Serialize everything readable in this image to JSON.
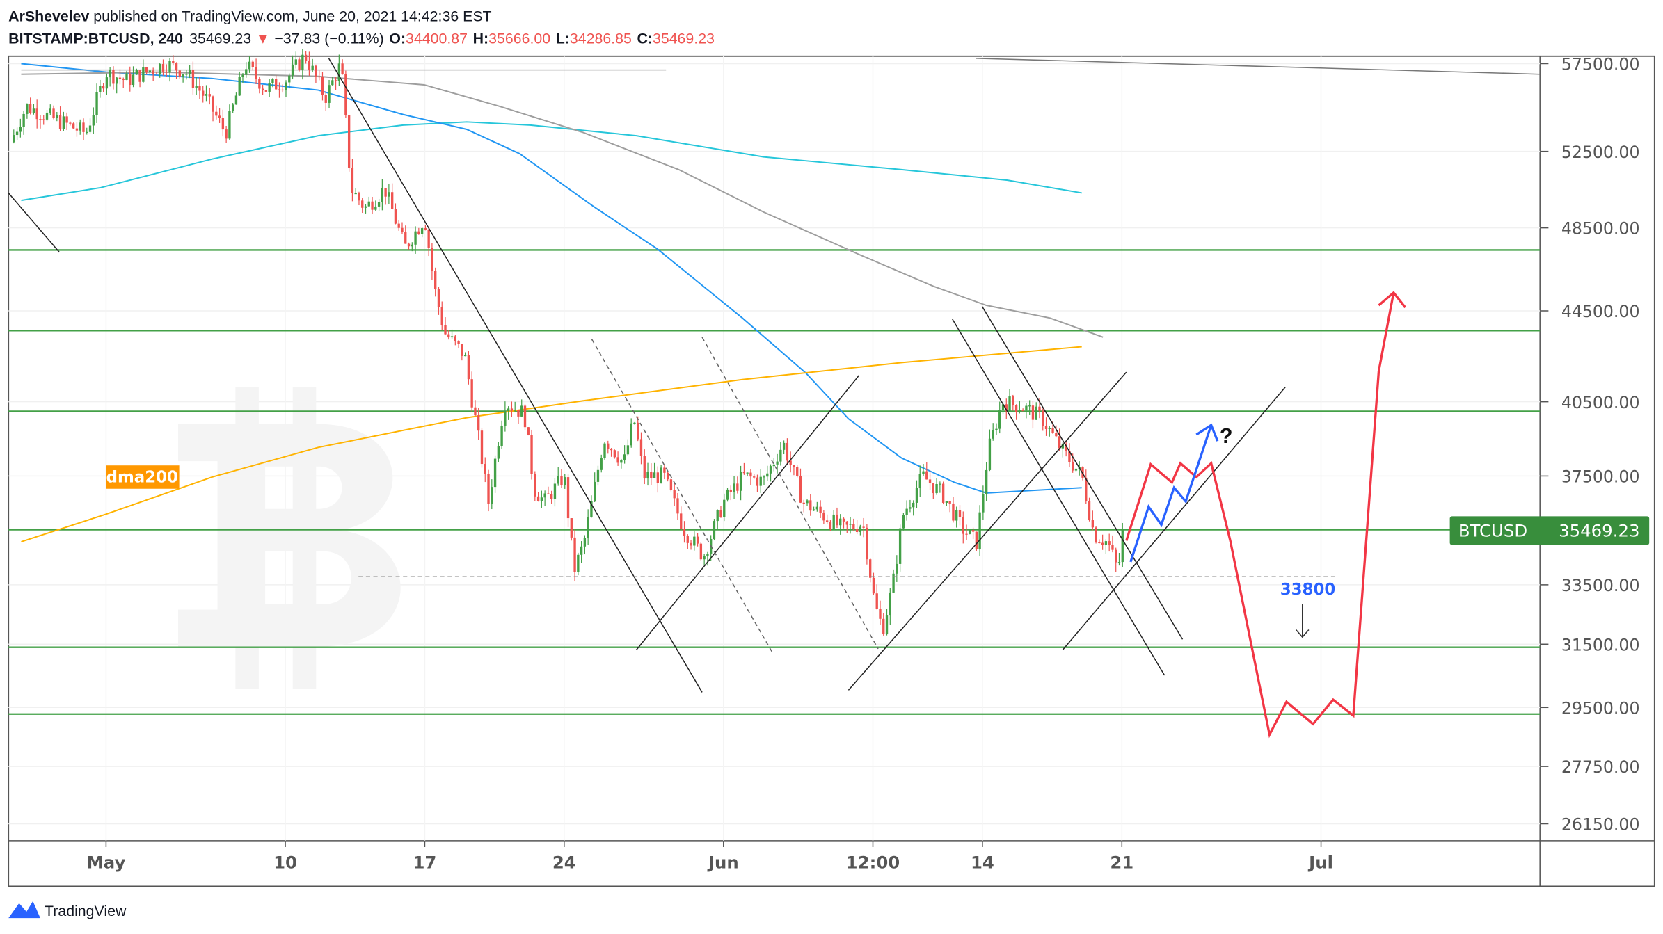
{
  "header": {
    "author": "ArShevelev",
    "published": " published on TradingView.com, June 20, 2021 14:42:36 EST",
    "symbol": "BITSTAMP:BTCUSD, 240",
    "last": "35469.23",
    "change": "−37.83 (−0.11%)",
    "o_label": "O:",
    "o": "34400.87",
    "h_label": "H:",
    "h": "35666.00",
    "l_label": "L:",
    "l": "34286.85",
    "c_label": "C:",
    "c": "35469.23"
  },
  "colors": {
    "up": "#43a047",
    "down": "#ef5350",
    "level": "#43a047",
    "accent_red": "#f23645",
    "accent_blue": "#2962ff",
    "ma_cyan": "#26c6da",
    "ma_blue": "#2196f3",
    "ma_gray": "#9e9e9e",
    "ma_orange": "#ffb300"
  },
  "chart_data": {
    "type": "candlestick",
    "title": "BITSTAMP:BTCUSD, 240",
    "scale": "log",
    "ylim": [
      26150,
      57500
    ],
    "y_ticks": [
      "57500.00",
      "52500.00",
      "48500.00",
      "44500.00",
      "40500.00",
      "37500.00",
      "33500.00",
      "31500.00",
      "29500.00",
      "27750.00",
      "26150.00"
    ],
    "y_tick_values": [
      57500,
      52500,
      48500,
      44500,
      40500,
      37500,
      33500,
      31500,
      29500,
      27750,
      26150
    ],
    "x_ticks": [
      "May",
      "10",
      "17",
      "24",
      "Jun",
      "12:00",
      "14",
      "21",
      "Jul"
    ],
    "x_tick_days": [
      0,
      9,
      16,
      23,
      31,
      38.5,
      44,
      51,
      61
    ],
    "x_origin": "2021-05-01",
    "close_waypoints_days_price": [
      [
        -4.8,
        53000
      ],
      [
        -4,
        55000
      ],
      [
        -3,
        54500
      ],
      [
        -1,
        53500
      ],
      [
        0,
        57000
      ],
      [
        1,
        56500
      ],
      [
        3,
        57500
      ],
      [
        4,
        57000
      ],
      [
        5,
        55500
      ],
      [
        6,
        53500
      ],
      [
        7,
        57500
      ],
      [
        8,
        56000
      ],
      [
        9,
        56500
      ],
      [
        10,
        58000
      ],
      [
        11,
        55500
      ],
      [
        11.8,
        57500
      ],
      [
        12.3,
        50500
      ],
      [
        13,
        49500
      ],
      [
        14,
        50500
      ],
      [
        15,
        47500
      ],
      [
        16,
        49000
      ],
      [
        16.5,
        45500
      ],
      [
        17,
        43500
      ],
      [
        18,
        42500
      ],
      [
        18.8,
        38500
      ],
      [
        19.2,
        36500
      ],
      [
        20,
        40500
      ],
      [
        21,
        40000
      ],
      [
        21.5,
        37000
      ],
      [
        22,
        36500
      ],
      [
        23,
        37500
      ],
      [
        23.5,
        34000
      ],
      [
        24,
        35000
      ],
      [
        25,
        39000
      ],
      [
        26,
        38000
      ],
      [
        26.5,
        39800
      ],
      [
        27,
        37500
      ],
      [
        28,
        37500
      ],
      [
        29,
        35500
      ],
      [
        30,
        34500
      ],
      [
        31,
        36500
      ],
      [
        32,
        37500
      ],
      [
        33,
        37300
      ],
      [
        34,
        38800
      ],
      [
        35,
        36500
      ],
      [
        36,
        36000
      ],
      [
        37,
        35500
      ],
      [
        38,
        35700
      ],
      [
        38.6,
        32800
      ],
      [
        39,
        32000
      ],
      [
        39.5,
        33500
      ],
      [
        40,
        36000
      ],
      [
        41,
        37500
      ],
      [
        42,
        36800
      ],
      [
        43,
        35500
      ],
      [
        43.7,
        35000
      ],
      [
        44.3,
        38500
      ],
      [
        45,
        40500
      ],
      [
        46,
        40300
      ],
      [
        47,
        39800
      ],
      [
        48,
        38500
      ],
      [
        49,
        37500
      ],
      [
        49.6,
        35300
      ],
      [
        50.3,
        35000
      ],
      [
        50.8,
        34000
      ],
      [
        51.1,
        35469.23
      ]
    ],
    "levels": [
      47400,
      43600,
      40100,
      35469.23,
      31400,
      29300
    ],
    "current_price_label": "BTCUSD",
    "current_price": "35469.23",
    "moving_average_label": "dma200",
    "target_label": "33800",
    "question_mark": "?"
  },
  "footer": {
    "brand": "TradingView"
  }
}
